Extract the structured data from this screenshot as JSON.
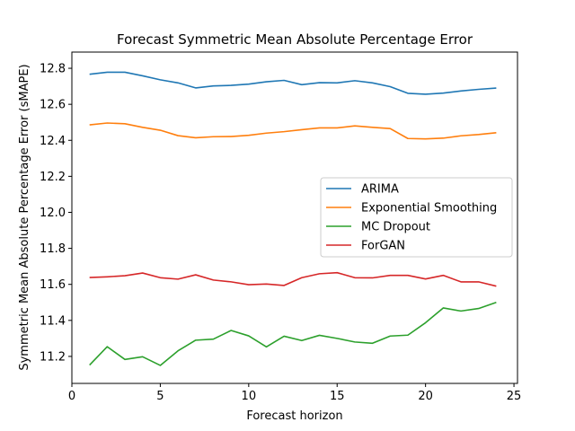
{
  "chart_data": {
    "type": "line",
    "title": "Forecast Symmetric Mean Absolute Percentage Error",
    "xlabel": "Forecast horizon",
    "ylabel": "Symmetric Mean Absolute Percentage Error (sMAPE)",
    "xlim": [
      0,
      25.2
    ],
    "ylim": [
      11.05,
      12.89
    ],
    "xticks": [
      0,
      5,
      10,
      15,
      20,
      25
    ],
    "yticks": [
      11.2,
      11.4,
      11.6,
      11.8,
      12.0,
      12.2,
      12.4,
      12.6,
      12.8
    ],
    "grid": false,
    "legend_position": "center-right",
    "x": [
      1,
      2,
      3,
      4,
      5,
      6,
      7,
      8,
      9,
      10,
      11,
      12,
      13,
      14,
      15,
      16,
      17,
      18,
      19,
      20,
      21,
      22,
      23,
      24
    ],
    "series": [
      {
        "name": "ARIMA",
        "color": "#1f77b4",
        "values": [
          12.767,
          12.778,
          12.778,
          12.758,
          12.736,
          12.719,
          12.691,
          12.702,
          12.705,
          12.712,
          12.725,
          12.733,
          12.709,
          12.72,
          12.719,
          12.731,
          12.719,
          12.698,
          12.661,
          12.656,
          12.662,
          12.674,
          12.683,
          12.69
        ]
      },
      {
        "name": "Exponential Smoothing",
        "color": "#ff7f0e",
        "values": [
          12.486,
          12.496,
          12.492,
          12.472,
          12.456,
          12.426,
          12.414,
          12.42,
          12.421,
          12.428,
          12.44,
          12.448,
          12.459,
          12.469,
          12.469,
          12.48,
          12.472,
          12.465,
          12.41,
          12.408,
          12.412,
          12.425,
          12.432,
          12.442
        ]
      },
      {
        "name": "MC Dropout",
        "color": "#2ca02c",
        "values": [
          11.152,
          11.254,
          11.183,
          11.198,
          11.15,
          11.231,
          11.29,
          11.296,
          11.344,
          11.314,
          11.253,
          11.312,
          11.288,
          11.317,
          11.3,
          11.28,
          11.273,
          11.313,
          11.318,
          11.387,
          11.469,
          11.452,
          11.466,
          11.5
        ]
      },
      {
        "name": "ForGAN",
        "color": "#d62728",
        "values": [
          11.638,
          11.642,
          11.648,
          11.663,
          11.637,
          11.629,
          11.653,
          11.624,
          11.614,
          11.598,
          11.602,
          11.594,
          11.637,
          11.659,
          11.665,
          11.637,
          11.636,
          11.65,
          11.65,
          11.63,
          11.65,
          11.614,
          11.614,
          11.59
        ]
      }
    ]
  }
}
